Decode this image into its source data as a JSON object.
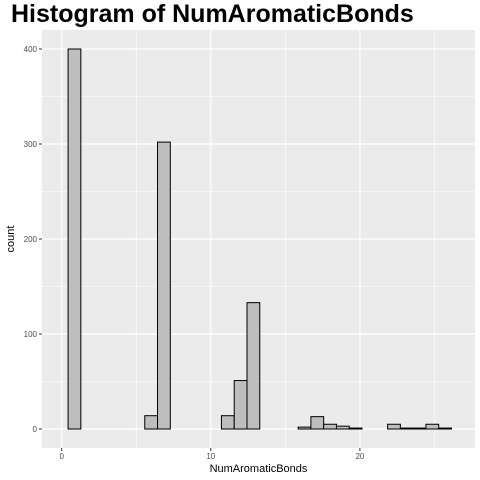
{
  "chart_data": {
    "type": "bar",
    "title": "Histogram of NumAromaticBonds",
    "xlabel": "NumAromaticBonds",
    "ylabel": "count",
    "xlim": [
      -1.32,
      27.72
    ],
    "ylim": [
      -20,
      420
    ],
    "x_ticks": [
      0,
      10,
      20
    ],
    "y_ticks": [
      0,
      100,
      200,
      300,
      400
    ],
    "grid": true,
    "bin_width": 0.857,
    "bins": [
      {
        "x": 0.857,
        "count": 400
      },
      {
        "x": 1.714,
        "count": 0
      },
      {
        "x": 2.571,
        "count": 0
      },
      {
        "x": 3.429,
        "count": 0
      },
      {
        "x": 4.286,
        "count": 0
      },
      {
        "x": 5.143,
        "count": 0
      },
      {
        "x": 6.0,
        "count": 14
      },
      {
        "x": 6.857,
        "count": 302
      },
      {
        "x": 7.714,
        "count": 0
      },
      {
        "x": 8.571,
        "count": 0
      },
      {
        "x": 9.429,
        "count": 0
      },
      {
        "x": 10.286,
        "count": 0
      },
      {
        "x": 11.143,
        "count": 14
      },
      {
        "x": 12.0,
        "count": 51
      },
      {
        "x": 12.857,
        "count": 133
      },
      {
        "x": 13.714,
        "count": 0
      },
      {
        "x": 14.571,
        "count": 0
      },
      {
        "x": 15.429,
        "count": 0
      },
      {
        "x": 16.286,
        "count": 2
      },
      {
        "x": 17.143,
        "count": 13
      },
      {
        "x": 18.0,
        "count": 5
      },
      {
        "x": 18.857,
        "count": 3
      },
      {
        "x": 19.714,
        "count": 1
      },
      {
        "x": 20.571,
        "count": 0
      },
      {
        "x": 21.429,
        "count": 0
      },
      {
        "x": 22.286,
        "count": 5
      },
      {
        "x": 23.143,
        "count": 1
      },
      {
        "x": 24.0,
        "count": 1
      },
      {
        "x": 24.857,
        "count": 5
      },
      {
        "x": 25.714,
        "count": 1
      }
    ],
    "colors": {
      "panel": "#ebebeb",
      "grid": "#ffffff",
      "bar_fill": "#bebebe",
      "bar_stroke": "#000000"
    }
  }
}
